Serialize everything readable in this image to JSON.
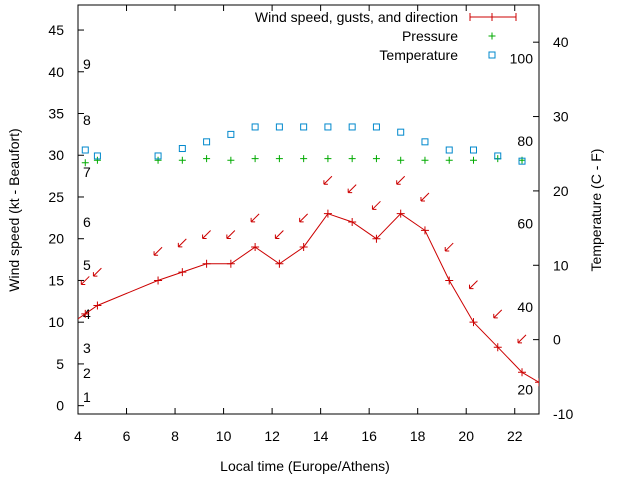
{
  "chart_data": {
    "type": "line",
    "xlabel": "Local time (Europe/Athens)",
    "ylabel": "Wind speed (kt - Beaufort)",
    "y2label": "Temperature (C - F)",
    "xlim": [
      4,
      23
    ],
    "ylim": [
      -1,
      48
    ],
    "y2lim": [
      -10,
      45
    ],
    "x_ticks": [
      4,
      6,
      8,
      10,
      12,
      14,
      16,
      18,
      20,
      22
    ],
    "y_ticks": [
      0,
      5,
      10,
      15,
      20,
      25,
      30,
      35,
      40,
      45
    ],
    "y2_ticks": [
      -10,
      0,
      10,
      20,
      30,
      40
    ],
    "beaufort_labels": [
      {
        "y": 1,
        "label": "1"
      },
      {
        "y": 2,
        "label": "2"
      },
      {
        "y": 3,
        "label": "3"
      },
      {
        "y": 4,
        "label": "4"
      },
      {
        "y": 5,
        "label": "5"
      },
      {
        "y": 6,
        "label": "6"
      },
      {
        "y": 7,
        "label": "7"
      },
      {
        "y": 8,
        "label": "8"
      },
      {
        "y": 9,
        "label": "9"
      }
    ],
    "fahrenheit_labels": [
      {
        "y2": -6.7,
        "label": "20"
      },
      {
        "y2": 4.4,
        "label": "40"
      },
      {
        "y2": 15.6,
        "label": "60"
      },
      {
        "y2": 26.7,
        "label": "80"
      },
      {
        "y2": 37.8,
        "label": "100"
      }
    ],
    "legend_position": "top-right",
    "grid": false,
    "series": [
      {
        "name": "Wind speed, gusts, and direction",
        "kind": "line",
        "color": "#cc0000",
        "x": [
          3.3,
          4.3,
          4.8,
          7.3,
          8.3,
          9.3,
          10.3,
          11.3,
          12.3,
          13.3,
          14.3,
          15.3,
          16.3,
          17.3,
          18.3,
          19.3,
          20.3,
          21.3,
          22.3,
          23.0
        ],
        "y": [
          9,
          11,
          12,
          15,
          16,
          17,
          17,
          19,
          17,
          19,
          23,
          22,
          20,
          23,
          21,
          15,
          10,
          7,
          4,
          2.8
        ]
      },
      {
        "name": "Pressure",
        "kind": "points",
        "marker": "+",
        "color": "#00aa00",
        "x": [
          4.3,
          4.8,
          7.3,
          8.3,
          9.3,
          10.3,
          11.3,
          12.3,
          13.3,
          14.3,
          15.3,
          16.3,
          17.3,
          18.3,
          19.3,
          20.3,
          21.3,
          22.3
        ],
        "y": [
          29.1,
          29.4,
          29.4,
          29.4,
          29.6,
          29.4,
          29.6,
          29.6,
          29.6,
          29.6,
          29.6,
          29.6,
          29.4,
          29.4,
          29.4,
          29.4,
          29.6,
          29.4
        ]
      },
      {
        "name": "Temperature",
        "kind": "points",
        "marker": "square",
        "color": "#0088cc",
        "axis": "y2",
        "x": [
          4.3,
          4.8,
          7.3,
          8.3,
          9.3,
          10.3,
          11.3,
          12.3,
          13.3,
          14.3,
          15.3,
          16.3,
          17.3,
          18.3,
          19.3,
          20.3,
          21.3,
          22.3
        ],
        "y": [
          25.5,
          24.7,
          24.7,
          25.7,
          26.6,
          27.6,
          28.6,
          28.6,
          28.6,
          28.6,
          28.6,
          28.6,
          27.9,
          26.6,
          25.5,
          25.5,
          24.7,
          24.0
        ]
      },
      {
        "name": "Gusts",
        "kind": "arrows",
        "color": "#cc0000",
        "x": [
          4.3,
          4.8,
          7.3,
          8.3,
          9.3,
          10.3,
          11.3,
          12.3,
          13.3,
          14.3,
          15.3,
          16.3,
          17.3,
          18.3,
          19.3,
          20.3,
          21.3,
          22.3
        ],
        "y": [
          15,
          16,
          18.5,
          19.5,
          20.5,
          20.5,
          22.5,
          20.5,
          22.5,
          27,
          26,
          24,
          27,
          25,
          19,
          14.5,
          11,
          8
        ]
      }
    ]
  }
}
